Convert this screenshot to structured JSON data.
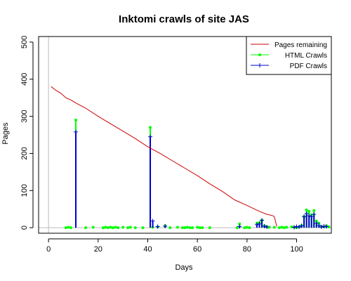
{
  "chart_data": {
    "type": "line",
    "title": "Inktomi crawls of site JAS",
    "xlabel": "Days",
    "ylabel": "Pages",
    "xlim": [
      -4,
      114
    ],
    "ylim": [
      -15,
      515
    ],
    "x_ticks": [
      0,
      20,
      40,
      60,
      80,
      100
    ],
    "y_ticks": [
      0,
      100,
      200,
      300,
      400,
      500
    ],
    "legend_position": "top-right",
    "series": [
      {
        "name": "Pages remaining",
        "color": "#cc0000",
        "style": "line",
        "x": [
          1,
          3,
          5,
          7,
          9,
          11,
          15,
          20,
          25,
          30,
          35,
          40,
          45,
          50,
          55,
          60,
          65,
          70,
          75,
          80,
          85,
          88,
          90,
          91,
          92
        ],
        "y": [
          380,
          370,
          362,
          350,
          344,
          336,
          322,
          300,
          280,
          260,
          240,
          218,
          200,
          180,
          160,
          140,
          118,
          98,
          75,
          60,
          44,
          36,
          33,
          30,
          3
        ]
      },
      {
        "name": "HTML Crawls",
        "color": "#00ff00",
        "style": "spikes",
        "x": [
          7,
          8,
          9,
          11,
          15,
          18,
          22,
          23,
          24,
          25,
          26,
          27,
          28,
          30,
          32,
          33,
          35,
          38,
          41,
          42,
          44,
          47,
          49,
          52,
          54,
          55,
          56,
          57,
          58,
          60,
          61,
          62,
          65,
          76,
          77,
          79,
          80,
          81,
          84,
          85,
          86,
          87,
          88,
          89,
          91,
          93,
          94,
          95,
          96,
          98,
          99,
          100,
          101,
          102,
          103,
          104,
          105,
          106,
          107,
          108,
          109,
          110,
          111,
          112,
          113
        ],
        "y": [
          0,
          1,
          0,
          290,
          0,
          1,
          0,
          1,
          0,
          1,
          0,
          1,
          0,
          1,
          0,
          1,
          0,
          0,
          270,
          1,
          2,
          5,
          0,
          1,
          0,
          0,
          1,
          0,
          0,
          1,
          0,
          0,
          0,
          0,
          10,
          0,
          1,
          0,
          12,
          14,
          20,
          5,
          2,
          1,
          1,
          0,
          1,
          0,
          1,
          2,
          1,
          0,
          2,
          6,
          30,
          48,
          44,
          35,
          46,
          18,
          12,
          3,
          2,
          5,
          2
        ]
      },
      {
        "name": "PDF Crawls",
        "color": "#0000cc",
        "style": "spikes",
        "x": [
          11,
          41,
          42,
          44,
          47,
          77,
          84,
          85,
          86,
          87,
          88,
          99,
          100,
          101,
          102,
          103,
          104,
          105,
          106,
          107,
          108,
          109,
          110,
          111,
          112
        ],
        "y": [
          258,
          245,
          18,
          3,
          4,
          3,
          8,
          10,
          20,
          4,
          2,
          1,
          3,
          2,
          5,
          30,
          38,
          32,
          30,
          36,
          12,
          6,
          2,
          4,
          3
        ]
      }
    ]
  }
}
